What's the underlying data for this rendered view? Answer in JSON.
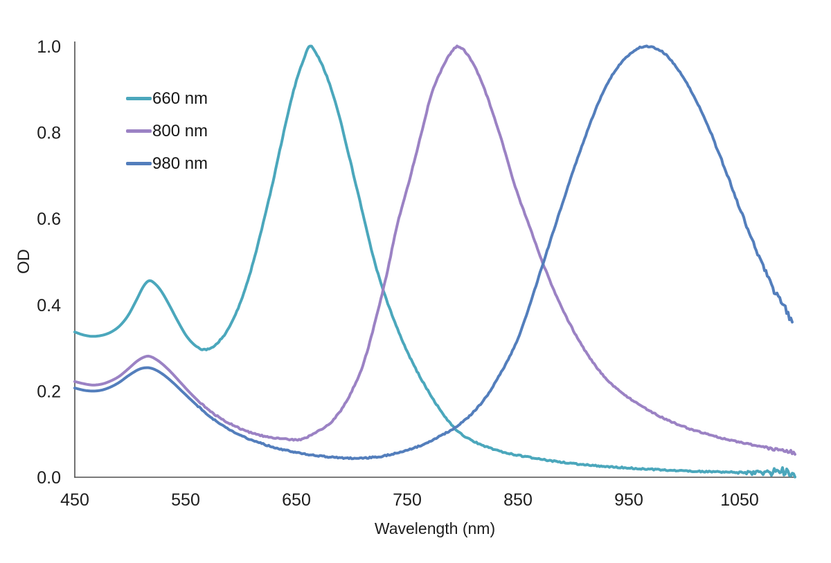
{
  "chart_data": {
    "type": "line",
    "title": "",
    "xlabel": "Wavelength (nm)",
    "ylabel": "OD",
    "xlim": [
      450,
      1100
    ],
    "ylim": [
      0.0,
      1.0
    ],
    "grid": false,
    "legend_position": "upper-left-inside",
    "axis_color": "#4f4f4f",
    "text_color": "#1d1d1d",
    "x_ticks": [
      450,
      550,
      650,
      750,
      850,
      950,
      1050
    ],
    "y_tick_values": [
      0.0,
      0.2,
      0.4,
      0.6,
      0.8,
      1.0
    ],
    "y_tick_labels": [
      "0.0",
      "0.2",
      "0.4",
      "0.6",
      "0.8",
      "1.0"
    ],
    "series": [
      {
        "name": "660 nm",
        "color": "#4BA7BC",
        "peak_nm": 660,
        "noise": {
          "from": 1025,
          "amp": 0.016
        },
        "points": [
          [
            450,
            0.337
          ],
          [
            458,
            0.33
          ],
          [
            466,
            0.327
          ],
          [
            474,
            0.329
          ],
          [
            482,
            0.336
          ],
          [
            490,
            0.35
          ],
          [
            498,
            0.375
          ],
          [
            506,
            0.413
          ],
          [
            512,
            0.443
          ],
          [
            517,
            0.456
          ],
          [
            522,
            0.45
          ],
          [
            528,
            0.432
          ],
          [
            535,
            0.401
          ],
          [
            543,
            0.362
          ],
          [
            551,
            0.327
          ],
          [
            559,
            0.305
          ],
          [
            566,
            0.296
          ],
          [
            573,
            0.3
          ],
          [
            580,
            0.315
          ],
          [
            588,
            0.342
          ],
          [
            596,
            0.383
          ],
          [
            604,
            0.438
          ],
          [
            612,
            0.508
          ],
          [
            620,
            0.59
          ],
          [
            628,
            0.676
          ],
          [
            636,
            0.77
          ],
          [
            644,
            0.862
          ],
          [
            650,
            0.92
          ],
          [
            656,
            0.966
          ],
          [
            662,
            1.0
          ],
          [
            668,
            0.982
          ],
          [
            674,
            0.952
          ],
          [
            681,
            0.905
          ],
          [
            688,
            0.845
          ],
          [
            696,
            0.762
          ],
          [
            704,
            0.676
          ],
          [
            712,
            0.59
          ],
          [
            720,
            0.505
          ],
          [
            728,
            0.437
          ],
          [
            737,
            0.372
          ],
          [
            746,
            0.315
          ],
          [
            755,
            0.265
          ],
          [
            764,
            0.222
          ],
          [
            773,
            0.183
          ],
          [
            782,
            0.148
          ],
          [
            790,
            0.122
          ],
          [
            798,
            0.102
          ],
          [
            808,
            0.086
          ],
          [
            818,
            0.074
          ],
          [
            830,
            0.063
          ],
          [
            842,
            0.055
          ],
          [
            856,
            0.048
          ],
          [
            870,
            0.042
          ],
          [
            886,
            0.036
          ],
          [
            902,
            0.031
          ],
          [
            920,
            0.027
          ],
          [
            940,
            0.023
          ],
          [
            960,
            0.02
          ],
          [
            980,
            0.017
          ],
          [
            1000,
            0.015
          ],
          [
            1020,
            0.013
          ],
          [
            1040,
            0.012
          ],
          [
            1060,
            0.011
          ],
          [
            1080,
            0.011
          ],
          [
            1100,
            0.01
          ]
        ]
      },
      {
        "name": "800 nm",
        "color": "#9B82C4",
        "peak_nm": 800,
        "noise": {
          "from": 1040,
          "amp": 0.006
        },
        "points": [
          [
            450,
            0.222
          ],
          [
            458,
            0.217
          ],
          [
            466,
            0.214
          ],
          [
            474,
            0.216
          ],
          [
            482,
            0.223
          ],
          [
            490,
            0.234
          ],
          [
            498,
            0.251
          ],
          [
            506,
            0.269
          ],
          [
            511,
            0.277
          ],
          [
            516,
            0.281
          ],
          [
            521,
            0.277
          ],
          [
            528,
            0.265
          ],
          [
            536,
            0.246
          ],
          [
            545,
            0.221
          ],
          [
            554,
            0.196
          ],
          [
            564,
            0.171
          ],
          [
            574,
            0.15
          ],
          [
            584,
            0.133
          ],
          [
            595,
            0.118
          ],
          [
            606,
            0.106
          ],
          [
            618,
            0.097
          ],
          [
            630,
            0.091
          ],
          [
            642,
            0.088
          ],
          [
            654,
            0.088
          ],
          [
            665,
            0.1
          ],
          [
            680,
            0.125
          ],
          [
            690,
            0.155
          ],
          [
            700,
            0.2
          ],
          [
            710,
            0.26
          ],
          [
            720,
            0.35
          ],
          [
            731,
            0.465
          ],
          [
            741,
            0.585
          ],
          [
            751,
            0.68
          ],
          [
            762,
            0.79
          ],
          [
            772,
            0.89
          ],
          [
            780,
            0.94
          ],
          [
            788,
            0.98
          ],
          [
            796,
            1.0
          ],
          [
            806,
            0.975
          ],
          [
            816,
            0.925
          ],
          [
            826,
            0.855
          ],
          [
            836,
            0.775
          ],
          [
            848,
            0.67
          ],
          [
            860,
            0.585
          ],
          [
            872,
            0.5
          ],
          [
            884,
            0.425
          ],
          [
            898,
            0.35
          ],
          [
            914,
            0.28
          ],
          [
            930,
            0.228
          ],
          [
            948,
            0.188
          ],
          [
            966,
            0.158
          ],
          [
            984,
            0.134
          ],
          [
            1002,
            0.115
          ],
          [
            1022,
            0.099
          ],
          [
            1042,
            0.086
          ],
          [
            1062,
            0.075
          ],
          [
            1080,
            0.066
          ],
          [
            1100,
            0.057
          ]
        ]
      },
      {
        "name": "980 nm",
        "color": "#537EBC",
        "peak_nm": 980,
        "noise": {
          "from": 985,
          "amp": 0.01
        },
        "points": [
          [
            450,
            0.207
          ],
          [
            458,
            0.202
          ],
          [
            466,
            0.2
          ],
          [
            474,
            0.202
          ],
          [
            482,
            0.209
          ],
          [
            490,
            0.22
          ],
          [
            498,
            0.235
          ],
          [
            506,
            0.248
          ],
          [
            511,
            0.253
          ],
          [
            517,
            0.254
          ],
          [
            523,
            0.249
          ],
          [
            530,
            0.238
          ],
          [
            538,
            0.221
          ],
          [
            547,
            0.199
          ],
          [
            556,
            0.177
          ],
          [
            566,
            0.154
          ],
          [
            576,
            0.133
          ],
          [
            586,
            0.116
          ],
          [
            597,
            0.1
          ],
          [
            608,
            0.088
          ],
          [
            620,
            0.077
          ],
          [
            632,
            0.068
          ],
          [
            645,
            0.06
          ],
          [
            658,
            0.054
          ],
          [
            672,
            0.049
          ],
          [
            686,
            0.046
          ],
          [
            700,
            0.044
          ],
          [
            714,
            0.045
          ],
          [
            728,
            0.049
          ],
          [
            742,
            0.057
          ],
          [
            756,
            0.068
          ],
          [
            768,
            0.08
          ],
          [
            780,
            0.096
          ],
          [
            790,
            0.11
          ],
          [
            800,
            0.128
          ],
          [
            810,
            0.152
          ],
          [
            820,
            0.182
          ],
          [
            830,
            0.222
          ],
          [
            840,
            0.268
          ],
          [
            850,
            0.322
          ],
          [
            860,
            0.395
          ],
          [
            870,
            0.475
          ],
          [
            880,
            0.555
          ],
          [
            890,
            0.635
          ],
          [
            900,
            0.712
          ],
          [
            910,
            0.785
          ],
          [
            920,
            0.853
          ],
          [
            930,
            0.91
          ],
          [
            940,
            0.952
          ],
          [
            950,
            0.98
          ],
          [
            958,
            0.995
          ],
          [
            966,
            1.0
          ],
          [
            974,
            0.996
          ],
          [
            982,
            0.984
          ],
          [
            990,
            0.962
          ],
          [
            1000,
            0.925
          ],
          [
            1010,
            0.878
          ],
          [
            1022,
            0.812
          ],
          [
            1034,
            0.734
          ],
          [
            1046,
            0.652
          ],
          [
            1058,
            0.572
          ],
          [
            1070,
            0.497
          ],
          [
            1082,
            0.428
          ],
          [
            1092,
            0.385
          ],
          [
            1098,
            0.358
          ]
        ]
      }
    ]
  }
}
